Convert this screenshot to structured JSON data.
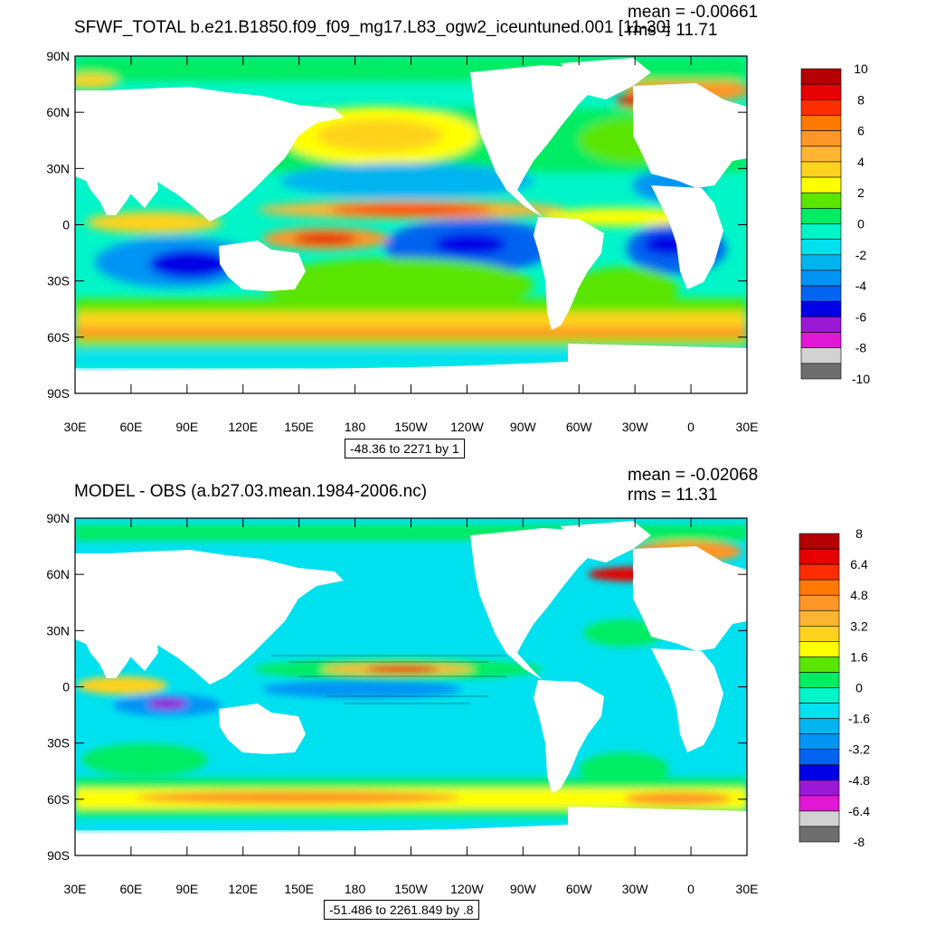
{
  "colors": {
    "map_palette": [
      "#6e6e6e",
      "#d2d2d2",
      "#e018d6",
      "#9a18d6",
      "#0000e6",
      "#0064f0",
      "#0094f5",
      "#00b4f0",
      "#00e1f0",
      "#00f5c8",
      "#00ec62",
      "#5ae600",
      "#ffff00",
      "#ffd21e",
      "#ffb432",
      "#ff9628",
      "#ff7800",
      "#ff2d00",
      "#e60000",
      "#b40000"
    ],
    "land": "#ffffff",
    "frame": "#000000"
  },
  "panels": [
    {
      "title": "SFWF_TOTAL b.e21.B1850.f09_f09_mg17.L83_ogw2_iceuntuned.001 [11-30]",
      "mean": "mean = -0.00661",
      "rms": "rms = 11.71",
      "range": "-48.36 to 2271 by 1",
      "lat_labels": [
        "90N",
        "60N",
        "30N",
        "0",
        "30S",
        "60S",
        "90S"
      ],
      "lon_labels": [
        "30E",
        "60E",
        "90E",
        "120E",
        "150E",
        "180",
        "150W",
        "120W",
        "90W",
        "60W",
        "30W",
        "0",
        "30E"
      ],
      "colorbar_labels": [
        "10",
        "8",
        "6",
        "4",
        "2",
        "0",
        "-2",
        "-4",
        "-6",
        "-8",
        "-10"
      ]
    },
    {
      "title": "MODEL - OBS (a.b27.03.mean.1984-2006.nc)",
      "mean": "mean = -0.02068",
      "rms": "rms = 11.31",
      "range": "-51.486 to 2261.849 by .8",
      "lat_labels": [
        "90N",
        "60N",
        "30N",
        "0",
        "30S",
        "60S",
        "90S"
      ],
      "lon_labels": [
        "30E",
        "60E",
        "90E",
        "120E",
        "150E",
        "180",
        "150W",
        "120W",
        "90W",
        "60W",
        "30W",
        "0",
        "30E"
      ],
      "colorbar_labels": [
        "8",
        "6.4",
        "4.8",
        "3.2",
        "1.6",
        "0",
        "-1.6",
        "-3.2",
        "-4.8",
        "-6.4",
        "-8"
      ]
    }
  ]
}
